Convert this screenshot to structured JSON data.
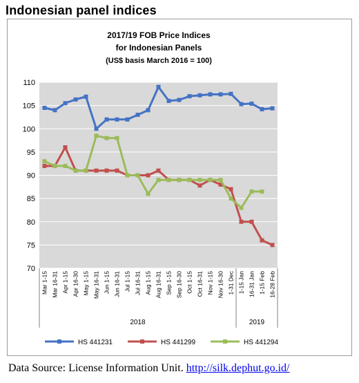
{
  "page": {
    "heading": "Indonesian panel indices",
    "source_prefix": "Data Source: License Information Unit.",
    "source_link": "http://silk.dephut.go.id/"
  },
  "chart_data": {
    "type": "line",
    "title_lines": [
      "2017/19 FOB Price Indices",
      "for Indonesian Panels",
      "(US$ basis March 2016 = 100)"
    ],
    "categories": [
      "Mar 1-15",
      "Mar 16-31",
      "Apr 1-15",
      "Apr 16-30",
      "May 1-15",
      "May 16-31",
      "Jun 1-15",
      "Jun 16-31",
      "Jul 1-15",
      "Jul 16-31",
      "Aug 1-15",
      "Aug 16-31",
      "Sep 1-15",
      "Sep 16-30",
      "Oct 1-15",
      "Oct 16-31",
      "Nov 1-15",
      "Nov 16-30",
      "1-31 Dec",
      "1-15 Jan",
      "16-31 Jan",
      "1-15 Feb",
      "16-28 Feb"
    ],
    "year_groups": [
      {
        "label": "2018",
        "start": 0,
        "end": 18
      },
      {
        "label": "2019",
        "start": 19,
        "end": 22
      }
    ],
    "ylim": [
      70,
      110
    ],
    "yticks": [
      70,
      75,
      80,
      85,
      90,
      95,
      100,
      105,
      110
    ],
    "grid": true,
    "legend_position": "bottom",
    "series": [
      {
        "name": "HS 441231",
        "color": "#4472c4",
        "values": [
          104.5,
          104.0,
          105.5,
          106.3,
          106.9,
          100.0,
          102.0,
          102.0,
          102.0,
          103.0,
          104.0,
          109.0,
          106.0,
          106.2,
          107.0,
          107.2,
          107.4,
          107.4,
          107.5,
          105.3,
          105.4,
          104.2,
          104.4
        ]
      },
      {
        "name": "HS 441299",
        "color": "#c0504d",
        "values": [
          92.0,
          92.0,
          96.0,
          91.0,
          91.0,
          91.0,
          91.0,
          91.0,
          90.0,
          90.0,
          90.0,
          91.0,
          89.0,
          89.0,
          89.0,
          87.8,
          89.0,
          88.0,
          87.0,
          80.0,
          80.0,
          76.0,
          75.0
        ]
      },
      {
        "name": "HS 441294",
        "color": "#9bbb59",
        "values": [
          93.0,
          92.0,
          92.0,
          91.0,
          91.0,
          98.5,
          98.0,
          98.0,
          90.0,
          90.0,
          86.0,
          89.0,
          89.0,
          89.0,
          89.0,
          89.0,
          89.0,
          89.0,
          85.0,
          83.0,
          86.5,
          86.5,
          null
        ]
      }
    ],
    "plot_background": "#d9d9d9",
    "gridline_color": "#ffffff"
  }
}
